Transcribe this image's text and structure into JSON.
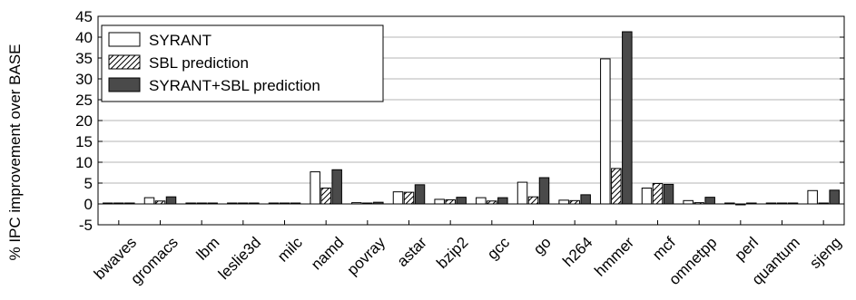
{
  "chart_data": {
    "type": "bar",
    "ylabel": "% IPC improvement over BASE",
    "ylim": [
      -5,
      45
    ],
    "yticks": [
      -5,
      0,
      5,
      10,
      15,
      20,
      25,
      30,
      35,
      40,
      45
    ],
    "grid": "horizontal",
    "legend_position": "top-left",
    "categories": [
      "bwaves",
      "gromacs",
      "lbm",
      "leslie3d",
      "milc",
      "namd",
      "povray",
      "astar",
      "bzip2",
      "gcc",
      "go",
      "h264",
      "hmmer",
      "mcf",
      "omnetpp",
      "perl",
      "quantum",
      "sjeng"
    ],
    "series": [
      {
        "name": "SYRANT",
        "style": "white",
        "values": [
          0,
          1.5,
          0,
          0,
          0,
          7.7,
          0.3,
          2.9,
          1.1,
          1.5,
          5.2,
          0.9,
          34.8,
          3.8,
          0.8,
          0.2,
          0,
          3.2
        ]
      },
      {
        "name": "SBL prediction",
        "style": "hatched",
        "values": [
          0,
          0.7,
          0,
          0,
          0,
          3.8,
          0.1,
          2.8,
          1.0,
          0.7,
          1.7,
          0.8,
          8.5,
          4.9,
          0.3,
          -0.2,
          0,
          0.1
        ]
      },
      {
        "name": "SYRANT+SBL prediction",
        "style": "dark",
        "values": [
          0,
          1.7,
          0,
          0,
          0,
          8.2,
          0.4,
          4.6,
          1.6,
          1.5,
          6.3,
          2.2,
          41.3,
          4.7,
          1.6,
          0.1,
          0,
          3.3
        ]
      }
    ]
  },
  "colors": {
    "dark_fill": "#4a4a4a",
    "white_fill": "#ffffff",
    "stroke": "#000000",
    "grid": "#b4b4b4"
  }
}
